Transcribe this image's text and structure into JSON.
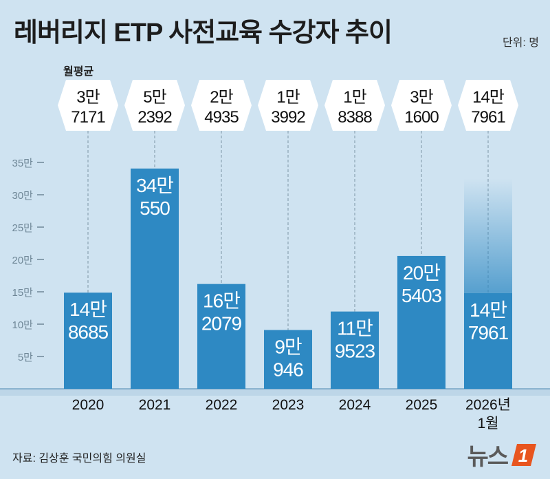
{
  "title": "레버리지 ETP 사전교육 수강자 추이",
  "unit_label": "단위: 명",
  "monthly_avg_label": "월평균",
  "source": "자료: 김상훈 국민의힘 의원실",
  "logo": {
    "text": "뉴스",
    "mark": "1",
    "accent_color": "#e8551f"
  },
  "colors": {
    "bar": "#2e89c3",
    "background": "#cfe3f1",
    "baseline": "#8ab3cf"
  },
  "chart_data": {
    "type": "bar",
    "title": "레버리지 ETP 사전교육 수강자 추이",
    "xlabel": "",
    "ylabel": "단위: 명",
    "ylim": [
      0,
      350000
    ],
    "yticks": [
      {
        "value": 50000,
        "label": "5만"
      },
      {
        "value": 100000,
        "label": "10만"
      },
      {
        "value": 150000,
        "label": "15만"
      },
      {
        "value": 200000,
        "label": "20만"
      },
      {
        "value": 250000,
        "label": "25만"
      },
      {
        "value": 300000,
        "label": "30만"
      },
      {
        "value": 350000,
        "label": "35만"
      }
    ],
    "categories": [
      {
        "line1": "2020",
        "line2": ""
      },
      {
        "line1": "2021",
        "line2": ""
      },
      {
        "line1": "2022",
        "line2": ""
      },
      {
        "line1": "2023",
        "line2": ""
      },
      {
        "line1": "2024",
        "line2": ""
      },
      {
        "line1": "2025",
        "line2": ""
      },
      {
        "line1": "2026년",
        "line2": "1월"
      }
    ],
    "values": [
      148685,
      340550,
      162079,
      90946,
      119523,
      205403,
      147961
    ],
    "value_labels": [
      [
        "14만",
        "8685"
      ],
      [
        "34만",
        "550"
      ],
      [
        "16만",
        "2079"
      ],
      [
        "9만",
        "946"
      ],
      [
        "11만",
        "9523"
      ],
      [
        "20만",
        "5403"
      ],
      [
        "14만",
        "7961"
      ]
    ],
    "monthly_avg": [
      37171,
      52392,
      24935,
      13992,
      18388,
      31600,
      147961
    ],
    "monthly_avg_labels": [
      [
        "3만",
        "7171"
      ],
      [
        "5만",
        "2392"
      ],
      [
        "2만",
        "4935"
      ],
      [
        "1만",
        "3992"
      ],
      [
        "1만",
        "8388"
      ],
      [
        "3만",
        "1600"
      ],
      [
        "14만",
        "7961"
      ]
    ],
    "projected_fade": [
      false,
      false,
      false,
      false,
      false,
      false,
      true
    ]
  }
}
